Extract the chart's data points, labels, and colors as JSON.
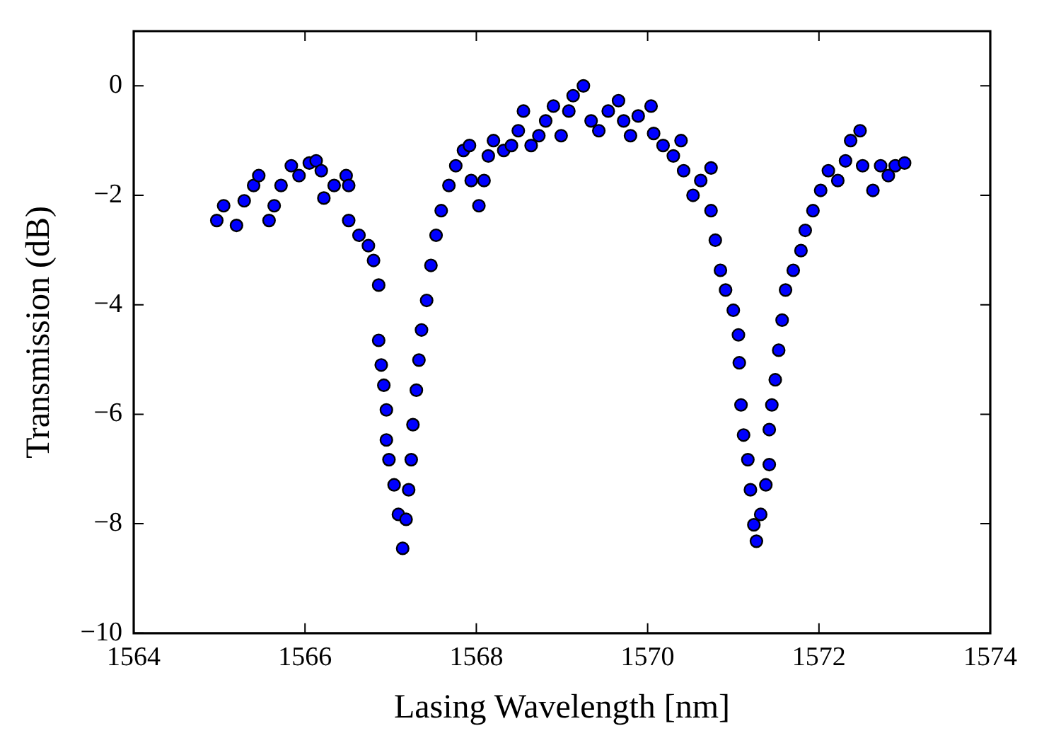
{
  "chart_data": {
    "type": "scatter",
    "xlabel": "Lasing Wavelength [nm]",
    "ylabel": "Transmission (dB)",
    "xlim": [
      1564,
      1574
    ],
    "xticks": [
      1564,
      1566,
      1568,
      1570,
      1572,
      1574
    ],
    "ylim": [
      -10,
      1
    ],
    "yticks": [
      -10,
      -8,
      -6,
      -4,
      -2,
      0
    ],
    "marker": "circle",
    "series": [
      {
        "color": "#0000ff",
        "x": [
          1564.97,
          1565.05,
          1565.2,
          1565.29,
          1565.4,
          1565.46,
          1565.58,
          1565.64,
          1565.72,
          1565.84,
          1565.93,
          1566.05,
          1566.13,
          1566.19,
          1566.22,
          1566.34,
          1566.48,
          1566.51,
          1566.51,
          1566.63,
          1566.74,
          1566.8,
          1566.86,
          1566.86,
          1566.89,
          1566.92,
          1566.95,
          1566.95,
          1566.98,
          1567.04,
          1567.09,
          1567.14,
          1567.18,
          1567.21,
          1567.24,
          1567.26,
          1567.3,
          1567.33,
          1567.36,
          1567.42,
          1567.47,
          1567.53,
          1567.59,
          1567.68,
          1567.76,
          1567.85,
          1567.92,
          1567.94,
          1568.03,
          1568.09,
          1568.14,
          1568.2,
          1568.32,
          1568.41,
          1568.49,
          1568.55,
          1568.64,
          1568.73,
          1568.81,
          1568.9,
          1568.99,
          1569.08,
          1569.13,
          1569.25,
          1569.34,
          1569.43,
          1569.54,
          1569.66,
          1569.72,
          1569.8,
          1569.89,
          1570.04,
          1570.07,
          1570.18,
          1570.3,
          1570.39,
          1570.42,
          1570.53,
          1570.62,
          1570.74,
          1570.74,
          1570.79,
          1570.85,
          1570.91,
          1571.0,
          1571.06,
          1571.07,
          1571.09,
          1571.12,
          1571.17,
          1571.2,
          1571.24,
          1571.27,
          1571.32,
          1571.38,
          1571.42,
          1571.42,
          1571.45,
          1571.49,
          1571.53,
          1571.57,
          1571.61,
          1571.7,
          1571.79,
          1571.84,
          1571.93,
          1572.02,
          1572.11,
          1572.22,
          1572.31,
          1572.37,
          1572.48,
          1572.51,
          1572.63,
          1572.72,
          1572.81,
          1572.89,
          1573.0
        ],
        "values": [
          -2.46,
          -2.19,
          -2.55,
          -2.1,
          -1.82,
          -1.64,
          -2.46,
          -2.19,
          -1.82,
          -1.46,
          -1.64,
          -1.41,
          -1.37,
          -1.55,
          -2.05,
          -1.82,
          -1.64,
          -1.82,
          -2.46,
          -2.73,
          -2.92,
          -3.19,
          -3.64,
          -4.65,
          -5.1,
          -5.47,
          -5.92,
          -6.47,
          -6.83,
          -7.29,
          -7.83,
          -8.45,
          -7.92,
          -7.38,
          -6.83,
          -6.19,
          -5.56,
          -5.01,
          -4.46,
          -3.92,
          -3.28,
          -2.73,
          -2.28,
          -1.82,
          -1.46,
          -1.18,
          -1.09,
          -1.73,
          -2.19,
          -1.73,
          -1.28,
          -1.0,
          -1.18,
          -1.09,
          -0.82,
          -0.46,
          -1.09,
          -0.91,
          -0.64,
          -0.37,
          -0.91,
          -0.46,
          -0.18,
          0.0,
          -0.64,
          -0.82,
          -0.46,
          -0.27,
          -0.64,
          -0.91,
          -0.55,
          -0.37,
          -0.87,
          -1.09,
          -1.28,
          -1.0,
          -1.55,
          -2.0,
          -1.73,
          -1.5,
          -2.28,
          -2.82,
          -3.37,
          -3.73,
          -4.1,
          -4.55,
          -5.06,
          -5.83,
          -6.38,
          -6.83,
          -7.38,
          -8.02,
          -8.32,
          -7.83,
          -7.29,
          -6.92,
          -6.28,
          -5.83,
          -5.37,
          -4.83,
          -4.28,
          -3.73,
          -3.37,
          -3.01,
          -2.64,
          -2.28,
          -1.91,
          -1.55,
          -1.73,
          -1.37,
          -1.0,
          -0.82,
          -1.46,
          -1.91,
          -1.46,
          -1.64,
          -1.46,
          -1.41
        ]
      }
    ]
  }
}
